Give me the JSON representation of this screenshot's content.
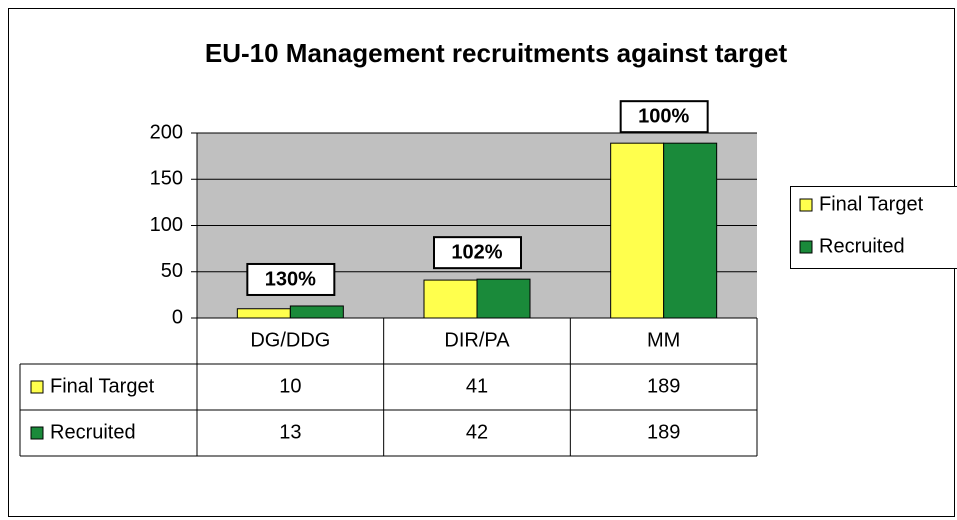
{
  "chart_data": {
    "type": "bar",
    "title": "EU-10 Management recruitments against target",
    "categories": [
      "DG/DDG",
      "DIR/PA",
      "MM"
    ],
    "series": [
      {
        "name": "Final Target",
        "color": "#ffff4d",
        "values": [
          10,
          41,
          189
        ]
      },
      {
        "name": "Recruited",
        "color": "#1a8a3a",
        "values": [
          13,
          42,
          189
        ]
      }
    ],
    "annotations": [
      "130%",
      "102%",
      "100%"
    ],
    "ylim": [
      0,
      200
    ],
    "yticks": [
      0,
      50,
      100,
      150,
      200
    ],
    "grid": true,
    "legend": "right",
    "data_table": true
  }
}
